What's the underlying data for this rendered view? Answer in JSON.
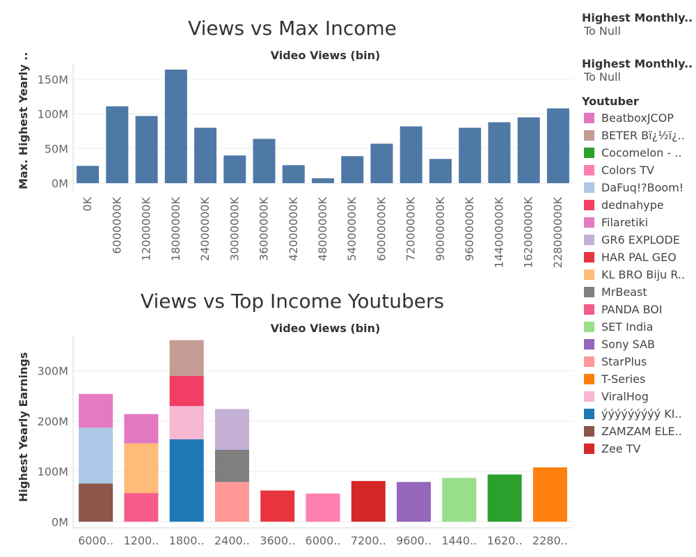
{
  "chart_data": [
    {
      "type": "bar",
      "title": "Views vs Max Income",
      "xlabel": "Video Views (bin)",
      "ylabel": "Max. Highest Yearly ..",
      "categories": [
        "0K",
        "6000000K",
        "12000000K",
        "18000000K",
        "24000000K",
        "30000000K",
        "36000000K",
        "42000000K",
        "48000000K",
        "54000000K",
        "60000000K",
        "72000000K",
        "90000000K",
        "96000000K",
        "144000000K",
        "162000000K",
        "228000000K"
      ],
      "values": [
        25,
        111,
        97,
        164,
        80,
        40,
        64,
        26,
        7,
        39,
        57,
        82,
        35,
        80,
        88,
        95,
        108
      ],
      "value_unit": "M",
      "ylim": [
        -12,
        172
      ],
      "yticks": [
        0,
        50,
        100,
        150
      ],
      "ytick_labels": [
        "0M",
        "50M",
        "100M",
        "150M"
      ],
      "color": "#4e79a7",
      "grid": true
    },
    {
      "type": "bar",
      "stacked": true,
      "title": "Views vs Top Income Youtubers",
      "xlabel": "Video Views (bin)",
      "ylabel": "Highest Yearly Earnings",
      "categories": [
        "6000..",
        "1200..",
        "1800..",
        "2400..",
        "3600..",
        "6000..",
        "7200..",
        "9600..",
        "1440..",
        "1620..",
        "2280.."
      ],
      "value_unit": "M",
      "ylim": [
        -12,
        370
      ],
      "yticks": [
        0,
        100,
        200,
        300
      ],
      "ytick_labels": [
        "0M",
        "100M",
        "200M",
        "300M"
      ],
      "grid": true,
      "stacks": [
        [
          {
            "series": "ZAMZAM ELE..",
            "value": 76
          },
          {
            "series": "DaFuq!?Boom!",
            "value": 111
          },
          {
            "series": "Filaretiki",
            "value": 67
          }
        ],
        [
          {
            "series": "PANDA BOI",
            "value": 57
          },
          {
            "series": "KL BRO Biju R..",
            "value": 99
          },
          {
            "series": "BeatboxJCOP",
            "value": 58
          }
        ],
        [
          {
            "series": "ýýýýýýýýý KI..",
            "value": 164
          },
          {
            "series": "ViralHog",
            "value": 66
          },
          {
            "series": "dednahype",
            "value": 60
          },
          {
            "series": "BETER Bï¿½ï¿..",
            "value": 71
          }
        ],
        [
          {
            "series": "StarPlus",
            "value": 79
          },
          {
            "series": "MrBeast",
            "value": 64
          },
          {
            "series": "GR6 EXPLODE",
            "value": 81
          }
        ],
        [
          {
            "series": "HAR PAL GEO",
            "value": 62
          }
        ],
        [
          {
            "series": "Colors TV",
            "value": 56
          }
        ],
        [
          {
            "series": "Zee TV",
            "value": 81
          }
        ],
        [
          {
            "series": "Sony SAB",
            "value": 79
          }
        ],
        [
          {
            "series": "SET India",
            "value": 87
          }
        ],
        [
          {
            "series": "Cocomelon - ..",
            "value": 94
          }
        ],
        [
          {
            "series": "T-Series",
            "value": 108
          }
        ]
      ]
    }
  ],
  "filters": [
    {
      "title": "Highest Monthly..",
      "value": "To Null"
    },
    {
      "title": "Highest Monthly..",
      "value": "To Null"
    }
  ],
  "legend": {
    "title": "Youtuber",
    "items": [
      {
        "label": "BeatboxJCOP",
        "color": "#e377c2"
      },
      {
        "label": "BETER Bï¿½ï¿..",
        "color": "#c49c94"
      },
      {
        "label": "Cocomelon - ..",
        "color": "#2ca02c"
      },
      {
        "label": "Colors TV",
        "color": "#ff7fb0"
      },
      {
        "label": "DaFuq!?Boom!",
        "color": "#aec7e8"
      },
      {
        "label": "dednahype",
        "color": "#f23d64"
      },
      {
        "label": "Filaretiki",
        "color": "#e57ac3"
      },
      {
        "label": "GR6 EXPLODE",
        "color": "#c5b0d5"
      },
      {
        "label": "HAR PAL GEO",
        "color": "#e8343f"
      },
      {
        "label": "KL BRO Biju R..",
        "color": "#ffbb78"
      },
      {
        "label": "MrBeast",
        "color": "#7f7f7f"
      },
      {
        "label": "PANDA BOI",
        "color": "#f75b8a"
      },
      {
        "label": "SET India",
        "color": "#98df8a"
      },
      {
        "label": "Sony SAB",
        "color": "#9467bd"
      },
      {
        "label": "StarPlus",
        "color": "#ff9896"
      },
      {
        "label": "T-Series",
        "color": "#ff7f0e"
      },
      {
        "label": "ViralHog",
        "color": "#f7b6d2"
      },
      {
        "label": "ýýýýýýýýý KI..",
        "color": "#1f77b4"
      },
      {
        "label": "ZAMZAM ELE..",
        "color": "#8c564b"
      },
      {
        "label": "Zee TV",
        "color": "#d62728"
      }
    ]
  }
}
